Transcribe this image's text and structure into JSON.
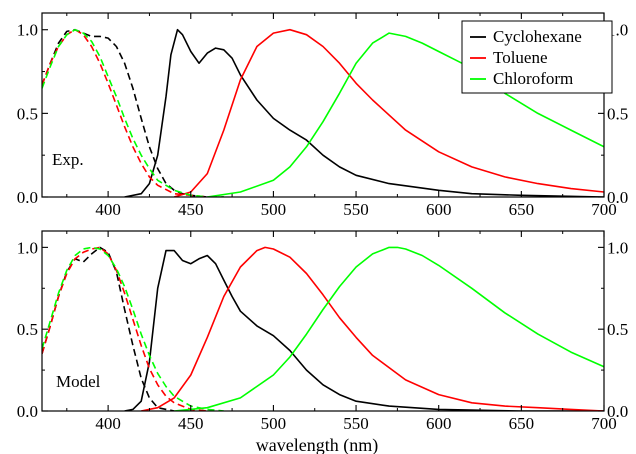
{
  "chart_data": [
    {
      "type": "line",
      "panel_label": "Exp.",
      "xlim": [
        360,
        700
      ],
      "ylim": [
        0,
        1.1
      ],
      "x_ticks": [
        400,
        450,
        500,
        550,
        600,
        650,
        700
      ],
      "y_ticks_left": [
        0.0,
        0.5,
        1.0
      ],
      "y_ticks_right": [
        0.0,
        0.5,
        1.0
      ],
      "legend": {
        "placement": "top-right",
        "entries": [
          {
            "name": "Cyclohexane",
            "color": "#000000"
          },
          {
            "name": "Toluene",
            "color": "#ff0000"
          },
          {
            "name": "Chloroform",
            "color": "#00ff00"
          }
        ]
      },
      "series": [
        {
          "name": "Cyclohexane",
          "kind": "absorption",
          "style": "dashed",
          "color": "#000000",
          "x": [
            360,
            365,
            370,
            375,
            380,
            385,
            390,
            395,
            400,
            405,
            410,
            415,
            420,
            425,
            430,
            435,
            440,
            445,
            450,
            460,
            470
          ],
          "y": [
            0.67,
            0.8,
            0.92,
            0.99,
            1.0,
            0.98,
            0.96,
            0.96,
            0.95,
            0.9,
            0.8,
            0.65,
            0.47,
            0.3,
            0.17,
            0.08,
            0.04,
            0.02,
            0.01,
            0.0,
            0.0
          ]
        },
        {
          "name": "Cyclohexane",
          "kind": "emission",
          "style": "solid",
          "color": "#000000",
          "x": [
            410,
            420,
            425,
            430,
            435,
            438,
            442,
            445,
            450,
            455,
            460,
            465,
            470,
            475,
            480,
            490,
            500,
            510,
            520,
            530,
            540,
            550,
            570,
            600,
            620,
            650,
            700
          ],
          "y": [
            0.0,
            0.02,
            0.08,
            0.25,
            0.6,
            0.85,
            1.0,
            0.97,
            0.87,
            0.8,
            0.86,
            0.89,
            0.88,
            0.83,
            0.73,
            0.58,
            0.47,
            0.4,
            0.34,
            0.25,
            0.18,
            0.13,
            0.08,
            0.04,
            0.02,
            0.01,
            0.0
          ]
        },
        {
          "name": "Toluene",
          "kind": "absorption",
          "style": "dashed",
          "color": "#ff0000",
          "x": [
            360,
            365,
            370,
            375,
            380,
            385,
            390,
            395,
            400,
            405,
            410,
            415,
            420,
            425,
            430,
            440,
            450,
            460
          ],
          "y": [
            0.67,
            0.8,
            0.9,
            0.97,
            1.0,
            0.97,
            0.9,
            0.8,
            0.68,
            0.55,
            0.42,
            0.3,
            0.2,
            0.12,
            0.07,
            0.02,
            0.01,
            0.0
          ]
        },
        {
          "name": "Toluene",
          "kind": "emission",
          "style": "solid",
          "color": "#ff0000",
          "x": [
            440,
            450,
            460,
            470,
            480,
            490,
            500,
            510,
            520,
            530,
            540,
            550,
            560,
            580,
            600,
            620,
            640,
            660,
            680,
            700
          ],
          "y": [
            0.0,
            0.03,
            0.14,
            0.4,
            0.7,
            0.9,
            0.98,
            1.0,
            0.97,
            0.9,
            0.8,
            0.68,
            0.58,
            0.4,
            0.27,
            0.18,
            0.12,
            0.08,
            0.05,
            0.03
          ]
        },
        {
          "name": "Chloroform",
          "kind": "absorption",
          "style": "dashed",
          "color": "#00ff00",
          "x": [
            360,
            365,
            370,
            375,
            380,
            385,
            390,
            395,
            400,
            405,
            410,
            415,
            420,
            425,
            430,
            440,
            450,
            460,
            470
          ],
          "y": [
            0.65,
            0.78,
            0.9,
            0.97,
            1.0,
            0.98,
            0.93,
            0.84,
            0.72,
            0.6,
            0.47,
            0.35,
            0.25,
            0.17,
            0.1,
            0.04,
            0.01,
            0.0,
            0.0
          ]
        },
        {
          "name": "Chloroform",
          "kind": "emission",
          "style": "solid",
          "color": "#00ff00",
          "x": [
            460,
            480,
            500,
            510,
            520,
            530,
            540,
            550,
            560,
            570,
            580,
            590,
            600,
            610,
            620,
            640,
            660,
            680,
            700
          ],
          "y": [
            0.0,
            0.03,
            0.1,
            0.18,
            0.3,
            0.45,
            0.62,
            0.8,
            0.92,
            0.98,
            0.96,
            0.92,
            0.87,
            0.82,
            0.77,
            0.62,
            0.5,
            0.4,
            0.3
          ]
        }
      ]
    },
    {
      "type": "line",
      "panel_label": "Model",
      "xlabel": "wavelength (nm)",
      "xlim": [
        360,
        700
      ],
      "ylim": [
        0,
        1.1
      ],
      "x_ticks": [
        400,
        450,
        500,
        550,
        600,
        650,
        700
      ],
      "y_ticks_left": [
        0.0,
        0.5,
        1.0
      ],
      "y_ticks_right": [
        0.0,
        0.5,
        1.0
      ],
      "series": [
        {
          "name": "Cyclohexane",
          "kind": "absorption",
          "style": "dashed",
          "color": "#000000",
          "x": [
            360,
            365,
            370,
            375,
            380,
            385,
            390,
            395,
            400,
            405,
            410,
            415,
            420,
            425,
            430,
            440
          ],
          "y": [
            0.35,
            0.52,
            0.7,
            0.85,
            0.93,
            0.91,
            0.96,
            1.0,
            0.97,
            0.85,
            0.62,
            0.4,
            0.2,
            0.08,
            0.02,
            0.0
          ]
        },
        {
          "name": "Cyclohexane",
          "kind": "emission",
          "style": "solid",
          "color": "#000000",
          "x": [
            410,
            415,
            420,
            425,
            430,
            435,
            440,
            445,
            450,
            455,
            460,
            465,
            470,
            475,
            480,
            490,
            500,
            510,
            520,
            530,
            540,
            550,
            570,
            600,
            650,
            700
          ],
          "y": [
            0.0,
            0.01,
            0.06,
            0.3,
            0.75,
            0.98,
            0.98,
            0.92,
            0.9,
            0.93,
            0.95,
            0.9,
            0.8,
            0.7,
            0.61,
            0.52,
            0.46,
            0.37,
            0.25,
            0.16,
            0.1,
            0.06,
            0.03,
            0.01,
            0.0,
            0.0
          ]
        },
        {
          "name": "Toluene",
          "kind": "absorption",
          "style": "dashed",
          "color": "#ff0000",
          "x": [
            360,
            365,
            370,
            375,
            380,
            385,
            390,
            395,
            400,
            405,
            410,
            415,
            420,
            425,
            430,
            435,
            440,
            450,
            460
          ],
          "y": [
            0.35,
            0.52,
            0.7,
            0.84,
            0.93,
            0.97,
            0.99,
            1.0,
            0.96,
            0.86,
            0.72,
            0.56,
            0.4,
            0.26,
            0.16,
            0.09,
            0.05,
            0.01,
            0.0
          ]
        },
        {
          "name": "Toluene",
          "kind": "emission",
          "style": "solid",
          "color": "#ff0000",
          "x": [
            420,
            430,
            440,
            450,
            460,
            470,
            480,
            490,
            495,
            500,
            510,
            520,
            530,
            540,
            550,
            560,
            580,
            600,
            620,
            640,
            660,
            680,
            700
          ],
          "y": [
            0.0,
            0.02,
            0.08,
            0.22,
            0.45,
            0.7,
            0.88,
            0.98,
            1.0,
            0.99,
            0.94,
            0.84,
            0.71,
            0.57,
            0.45,
            0.34,
            0.19,
            0.1,
            0.05,
            0.03,
            0.02,
            0.01,
            0.0
          ]
        },
        {
          "name": "Chloroform",
          "kind": "absorption",
          "style": "dashed",
          "color": "#00ff00",
          "x": [
            360,
            365,
            370,
            375,
            380,
            385,
            390,
            395,
            400,
            405,
            410,
            415,
            420,
            425,
            430,
            435,
            440,
            450,
            460,
            470
          ],
          "y": [
            0.38,
            0.55,
            0.72,
            0.86,
            0.95,
            0.99,
            1.0,
            0.99,
            0.95,
            0.87,
            0.76,
            0.62,
            0.47,
            0.34,
            0.23,
            0.15,
            0.09,
            0.03,
            0.01,
            0.0
          ]
        },
        {
          "name": "Chloroform",
          "kind": "emission",
          "style": "solid",
          "color": "#00ff00",
          "x": [
            440,
            460,
            480,
            500,
            510,
            520,
            530,
            540,
            550,
            560,
            570,
            575,
            580,
            590,
            600,
            620,
            640,
            660,
            680,
            700
          ],
          "y": [
            0.0,
            0.02,
            0.08,
            0.22,
            0.33,
            0.47,
            0.62,
            0.76,
            0.88,
            0.96,
            1.0,
            1.0,
            0.99,
            0.95,
            0.89,
            0.75,
            0.6,
            0.47,
            0.36,
            0.27
          ]
        }
      ]
    }
  ]
}
